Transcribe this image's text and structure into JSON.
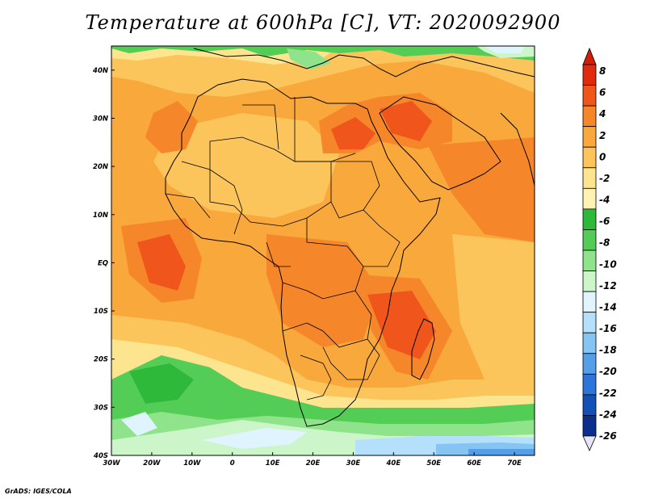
{
  "title": "Temperature at 600hPa [C], VT: 2020092900",
  "credit": "GrADS: IGES/COLA",
  "map": {
    "lon_range": [
      -30,
      75
    ],
    "lat_range": [
      -40,
      45
    ],
    "x_ticks": [
      "30W",
      "20W",
      "10W",
      "0",
      "10E",
      "20E",
      "30E",
      "40E",
      "50E",
      "60E",
      "70E"
    ],
    "y_ticks": [
      "40N",
      "30N",
      "20N",
      "10N",
      "EQ",
      "10S",
      "20S",
      "30S",
      "40S"
    ]
  },
  "colorbar": {
    "levels": [
      "8",
      "6",
      "4",
      "2",
      "0",
      "-2",
      "-4",
      "-6",
      "-8",
      "-10",
      "-12",
      "-14",
      "-16",
      "-18",
      "-20",
      "-22",
      "-24",
      "-26"
    ],
    "colors": [
      "#e02a0c",
      "#f0561c",
      "#f6862a",
      "#f9a83c",
      "#fcc55c",
      "#fde48e",
      "#fff2b4",
      "#2fb93a",
      "#54cd56",
      "#8fe38a",
      "#ccf6ca",
      "#dff4fe",
      "#b4e0fb",
      "#86c4f3",
      "#559ee8",
      "#2b76d8",
      "#1451b6",
      "#0a2f8c",
      "#0a1a6a",
      "#e6e6fa"
    ],
    "top_arrow_color": "#d01e08",
    "bottom_arrow_color": "#e6e6fa"
  },
  "colors": {
    "land_border": "#000000",
    "background": "#ffffff"
  }
}
